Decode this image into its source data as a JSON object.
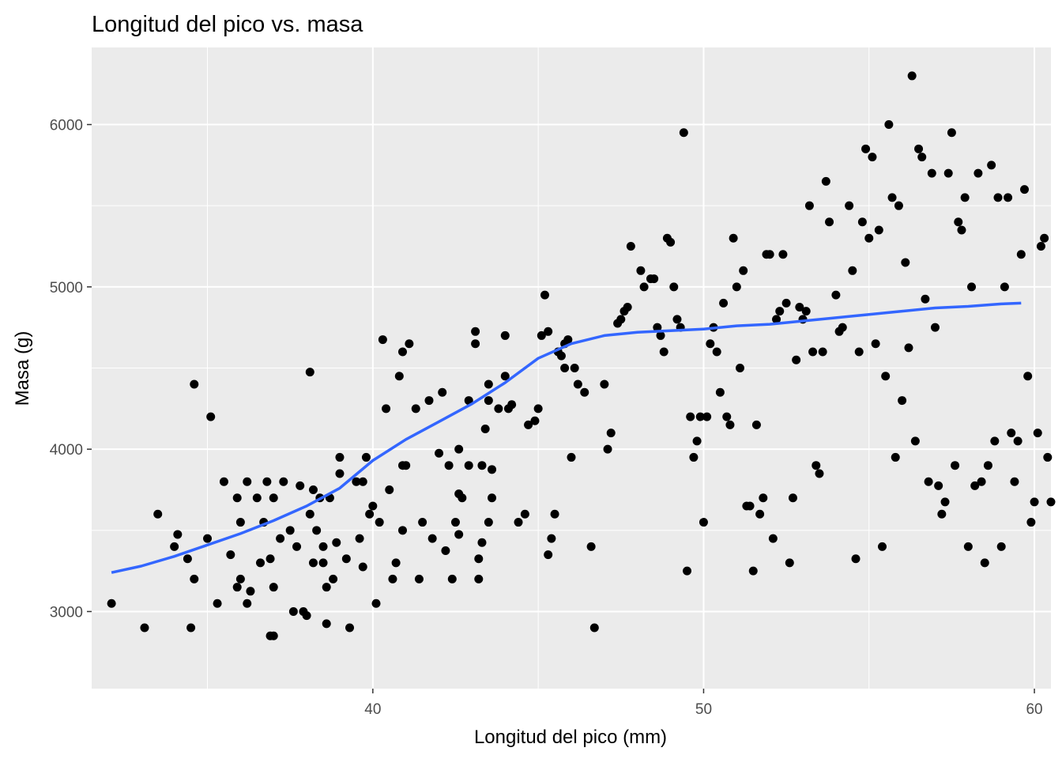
{
  "chart_data": {
    "type": "scatter",
    "title": "Longitud del pico vs. masa",
    "xlabel": "Longitud del pico (mm)",
    "ylabel": "Masa (g)",
    "xlim": [
      31.5,
      60.5
    ],
    "ylim": [
      2525,
      6475
    ],
    "xticks": [
      40,
      50,
      60
    ],
    "yticks": [
      3000,
      4000,
      5000,
      6000
    ],
    "xticks_minor": [
      35,
      45,
      55
    ],
    "yticks_minor": [
      3500,
      4500,
      5500
    ],
    "grid": true,
    "colors": {
      "panel": "#ebebeb",
      "grid": "#ffffff",
      "points": "#000000",
      "smooth": "#3366ff"
    },
    "points": [
      [
        32.1,
        3050
      ],
      [
        33.1,
        2900
      ],
      [
        33.5,
        3600
      ],
      [
        34.0,
        3400
      ],
      [
        34.1,
        3475
      ],
      [
        34.4,
        3325
      ],
      [
        34.5,
        2900
      ],
      [
        34.6,
        3200
      ],
      [
        34.6,
        4400
      ],
      [
        35.0,
        3450
      ],
      [
        35.1,
        4200
      ],
      [
        35.3,
        3050
      ],
      [
        35.5,
        3800
      ],
      [
        35.7,
        3350
      ],
      [
        35.9,
        3700
      ],
      [
        35.9,
        3150
      ],
      [
        36.0,
        3550
      ],
      [
        36.0,
        3200
      ],
      [
        36.2,
        3800
      ],
      [
        36.2,
        3050
      ],
      [
        36.3,
        3125
      ],
      [
        36.5,
        3700
      ],
      [
        36.6,
        3300
      ],
      [
        36.7,
        3550
      ],
      [
        36.8,
        3800
      ],
      [
        36.9,
        3325
      ],
      [
        37.0,
        3700
      ],
      [
        37.0,
        3150
      ],
      [
        36.9,
        2850
      ],
      [
        37.0,
        2850
      ],
      [
        37.2,
        3450
      ],
      [
        37.3,
        3800
      ],
      [
        37.5,
        3500
      ],
      [
        37.6,
        3000
      ],
      [
        37.7,
        3400
      ],
      [
        37.8,
        3775
      ],
      [
        37.9,
        3000
      ],
      [
        38.0,
        2975
      ],
      [
        38.1,
        3600
      ],
      [
        38.1,
        4475
      ],
      [
        38.2,
        3750
      ],
      [
        38.2,
        3300
      ],
      [
        38.3,
        3500
      ],
      [
        38.4,
        3700
      ],
      [
        38.5,
        3400
      ],
      [
        38.5,
        3300
      ],
      [
        38.6,
        2925
      ],
      [
        38.6,
        3150
      ],
      [
        38.7,
        3700
      ],
      [
        38.8,
        3200
      ],
      [
        38.9,
        3425
      ],
      [
        39.0,
        3950
      ],
      [
        39.0,
        3850
      ],
      [
        39.2,
        3325
      ],
      [
        39.3,
        2900
      ],
      [
        39.5,
        3800
      ],
      [
        39.6,
        3450
      ],
      [
        39.7,
        3275
      ],
      [
        39.7,
        3800
      ],
      [
        39.8,
        3950
      ],
      [
        39.9,
        3600
      ],
      [
        40.0,
        3650
      ],
      [
        40.1,
        3050
      ],
      [
        40.2,
        3550
      ],
      [
        40.3,
        4675
      ],
      [
        40.4,
        4250
      ],
      [
        40.5,
        3750
      ],
      [
        40.6,
        3200
      ],
      [
        40.7,
        3300
      ],
      [
        40.8,
        4450
      ],
      [
        40.9,
        4600
      ],
      [
        40.9,
        3900
      ],
      [
        40.9,
        3500
      ],
      [
        41.0,
        3900
      ],
      [
        41.1,
        4650
      ],
      [
        41.3,
        4250
      ],
      [
        41.4,
        3200
      ],
      [
        41.5,
        3550
      ],
      [
        41.7,
        4300
      ],
      [
        41.8,
        3450
      ],
      [
        42.0,
        3975
      ],
      [
        42.1,
        4350
      ],
      [
        42.2,
        3375
      ],
      [
        42.3,
        3900
      ],
      [
        42.4,
        3200
      ],
      [
        42.5,
        3550
      ],
      [
        42.6,
        3475
      ],
      [
        42.6,
        4000
      ],
      [
        42.6,
        3725
      ],
      [
        42.7,
        3700
      ],
      [
        42.9,
        3900
      ],
      [
        42.9,
        4300
      ],
      [
        43.1,
        4650
      ],
      [
        43.1,
        4725
      ],
      [
        43.2,
        3200
      ],
      [
        43.2,
        3325
      ],
      [
        43.3,
        3425
      ],
      [
        43.3,
        3900
      ],
      [
        43.4,
        4125
      ],
      [
        43.5,
        4400
      ],
      [
        43.5,
        3550
      ],
      [
        43.5,
        4300
      ],
      [
        43.6,
        3700
      ],
      [
        43.6,
        3875
      ],
      [
        43.8,
        4250
      ],
      [
        44.0,
        4450
      ],
      [
        44.0,
        4700
      ],
      [
        44.1,
        4250
      ],
      [
        44.2,
        4275
      ],
      [
        44.4,
        3550
      ],
      [
        44.6,
        3600
      ],
      [
        44.7,
        4150
      ],
      [
        44.9,
        4175
      ],
      [
        45.0,
        4250
      ],
      [
        45.1,
        4700
      ],
      [
        45.2,
        4950
      ],
      [
        45.3,
        3350
      ],
      [
        45.3,
        4725
      ],
      [
        45.4,
        3450
      ],
      [
        45.5,
        3600
      ],
      [
        45.6,
        4600
      ],
      [
        45.7,
        4575
      ],
      [
        45.8,
        4650
      ],
      [
        45.8,
        4500
      ],
      [
        45.9,
        4675
      ],
      [
        46.0,
        3950
      ],
      [
        46.1,
        4500
      ],
      [
        46.2,
        4400
      ],
      [
        46.4,
        4350
      ],
      [
        46.6,
        3400
      ],
      [
        46.7,
        2900
      ],
      [
        47.0,
        4400
      ],
      [
        47.1,
        4000
      ],
      [
        47.2,
        4100
      ],
      [
        47.4,
        4775
      ],
      [
        47.5,
        4800
      ],
      [
        47.6,
        4850
      ],
      [
        47.7,
        4875
      ],
      [
        47.8,
        5250
      ],
      [
        48.1,
        5100
      ],
      [
        48.2,
        5000
      ],
      [
        48.4,
        5050
      ],
      [
        48.5,
        5050
      ],
      [
        48.6,
        4750
      ],
      [
        48.7,
        4700
      ],
      [
        48.8,
        4600
      ],
      [
        48.9,
        5300
      ],
      [
        49.0,
        5275
      ],
      [
        49.1,
        5000
      ],
      [
        49.2,
        4800
      ],
      [
        49.3,
        4750
      ],
      [
        49.4,
        5950
      ],
      [
        49.5,
        3250
      ],
      [
        49.6,
        4200
      ],
      [
        49.7,
        3950
      ],
      [
        49.8,
        4050
      ],
      [
        49.9,
        4200
      ],
      [
        50.0,
        3550
      ],
      [
        50.1,
        4200
      ],
      [
        50.2,
        4650
      ],
      [
        50.3,
        4750
      ],
      [
        50.4,
        4600
      ],
      [
        50.5,
        4350
      ],
      [
        50.6,
        4900
      ],
      [
        50.7,
        4200
      ],
      [
        50.8,
        4150
      ],
      [
        50.9,
        5300
      ],
      [
        51.0,
        5000
      ],
      [
        51.1,
        4500
      ],
      [
        51.2,
        5100
      ],
      [
        51.3,
        3650
      ],
      [
        51.4,
        3650
      ],
      [
        51.5,
        3250
      ],
      [
        51.6,
        4150
      ],
      [
        51.7,
        3600
      ],
      [
        51.8,
        3700
      ],
      [
        51.9,
        5200
      ],
      [
        52.0,
        5200
      ],
      [
        52.1,
        3450
      ],
      [
        52.2,
        4800
      ],
      [
        52.3,
        4850
      ],
      [
        52.4,
        5200
      ],
      [
        52.5,
        4900
      ],
      [
        52.6,
        3300
      ],
      [
        52.7,
        3700
      ],
      [
        52.8,
        4550
      ],
      [
        52.9,
        4875
      ],
      [
        53.0,
        4800
      ],
      [
        53.1,
        4850
      ],
      [
        53.2,
        5500
      ],
      [
        53.3,
        4600
      ],
      [
        53.4,
        3900
      ],
      [
        53.5,
        3850
      ],
      [
        53.6,
        4600
      ],
      [
        53.7,
        5650
      ],
      [
        53.8,
        5400
      ],
      [
        54.0,
        4950
      ],
      [
        54.1,
        4725
      ],
      [
        54.2,
        4750
      ],
      [
        54.4,
        5500
      ],
      [
        54.5,
        5100
      ],
      [
        54.6,
        3325
      ],
      [
        54.7,
        4600
      ],
      [
        54.8,
        5400
      ],
      [
        54.9,
        5850
      ],
      [
        55.0,
        5300
      ],
      [
        55.1,
        5800
      ],
      [
        55.2,
        4650
      ],
      [
        55.3,
        5350
      ],
      [
        55.4,
        3400
      ],
      [
        55.5,
        4450
      ],
      [
        55.6,
        6000
      ],
      [
        55.7,
        5550
      ],
      [
        55.8,
        3950
      ],
      [
        55.9,
        5500
      ],
      [
        56.0,
        4300
      ],
      [
        56.1,
        5150
      ],
      [
        56.2,
        4625
      ],
      [
        56.3,
        6300
      ],
      [
        56.4,
        4050
      ],
      [
        56.5,
        5850
      ],
      [
        56.6,
        5800
      ],
      [
        56.7,
        4925
      ],
      [
        56.8,
        3800
      ],
      [
        56.9,
        5700
      ],
      [
        57.0,
        4750
      ],
      [
        57.1,
        3775
      ],
      [
        57.2,
        3600
      ],
      [
        57.3,
        3675
      ],
      [
        57.4,
        5700
      ],
      [
        57.5,
        5950
      ],
      [
        57.6,
        3900
      ],
      [
        57.7,
        5400
      ],
      [
        57.8,
        5350
      ],
      [
        57.9,
        5550
      ],
      [
        58.0,
        3400
      ],
      [
        58.1,
        5000
      ],
      [
        58.2,
        3775
      ],
      [
        58.3,
        5700
      ],
      [
        58.4,
        3800
      ],
      [
        58.5,
        3300
      ],
      [
        58.6,
        3900
      ],
      [
        58.7,
        5750
      ],
      [
        58.8,
        4050
      ],
      [
        58.9,
        5550
      ],
      [
        59.0,
        3400
      ],
      [
        59.1,
        5000
      ],
      [
        59.2,
        5550
      ],
      [
        59.3,
        4100
      ],
      [
        59.4,
        3800
      ],
      [
        59.5,
        4050
      ],
      [
        59.6,
        5200
      ],
      [
        59.7,
        5600
      ],
      [
        59.8,
        4450
      ],
      [
        59.9,
        3550
      ],
      [
        60.0,
        3675
      ],
      [
        60.1,
        4100
      ],
      [
        60.2,
        5250
      ],
      [
        60.3,
        5300
      ],
      [
        60.4,
        3950
      ],
      [
        60.5,
        3675
      ]
    ],
    "smooth": [
      [
        32.1,
        3240
      ],
      [
        33.0,
        3280
      ],
      [
        34.0,
        3340
      ],
      [
        35.0,
        3410
      ],
      [
        36.0,
        3480
      ],
      [
        37.0,
        3560
      ],
      [
        38.0,
        3650
      ],
      [
        39.0,
        3760
      ],
      [
        40.0,
        3930
      ],
      [
        41.0,
        4060
      ],
      [
        42.0,
        4170
      ],
      [
        43.0,
        4280
      ],
      [
        44.0,
        4410
      ],
      [
        45.0,
        4560
      ],
      [
        46.0,
        4650
      ],
      [
        47.0,
        4700
      ],
      [
        48.0,
        4720
      ],
      [
        49.0,
        4730
      ],
      [
        50.0,
        4740
      ],
      [
        51.0,
        4760
      ],
      [
        52.0,
        4770
      ],
      [
        53.0,
        4790
      ],
      [
        54.0,
        4810
      ],
      [
        55.0,
        4830
      ],
      [
        56.0,
        4850
      ],
      [
        57.0,
        4870
      ],
      [
        58.0,
        4880
      ],
      [
        59.0,
        4895
      ],
      [
        59.6,
        4900
      ]
    ]
  }
}
